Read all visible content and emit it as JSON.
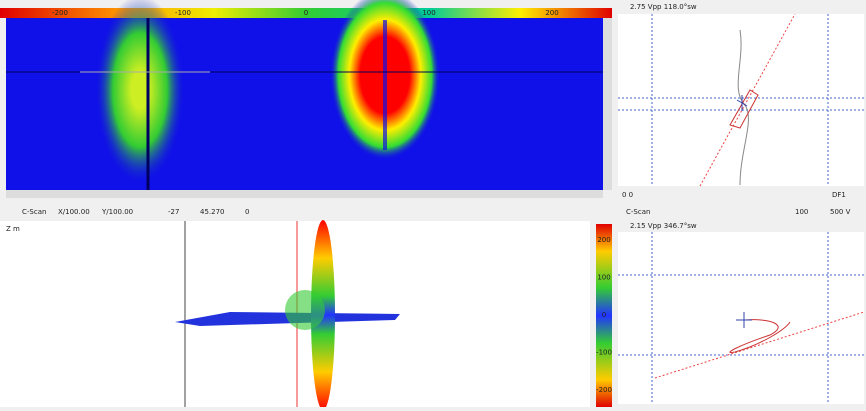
{
  "colorbar_top": {
    "labels": [
      "-200",
      "-100",
      "0",
      "100",
      "200"
    ]
  },
  "toolbar": {
    "view": "C-Scan",
    "x_scale": "X/100.00",
    "y_scale": "Y/100.00",
    "angle": "-27",
    "value": "45.270",
    "rotation": "0"
  },
  "impedance_top": {
    "header": "2.75 Vpp 118.0°sw",
    "footer_left": "0 0",
    "footer_right": "DF1"
  },
  "impedance_bottom": {
    "title": "C-Scan",
    "header": "2.15 Vpp 346.7°sw",
    "zoom": "100",
    "scale": "500 V"
  },
  "colorbar_side": {
    "labels": [
      "200",
      "100",
      "0",
      "-100",
      "-200"
    ]
  },
  "view3d": {
    "label": "Z m"
  }
}
